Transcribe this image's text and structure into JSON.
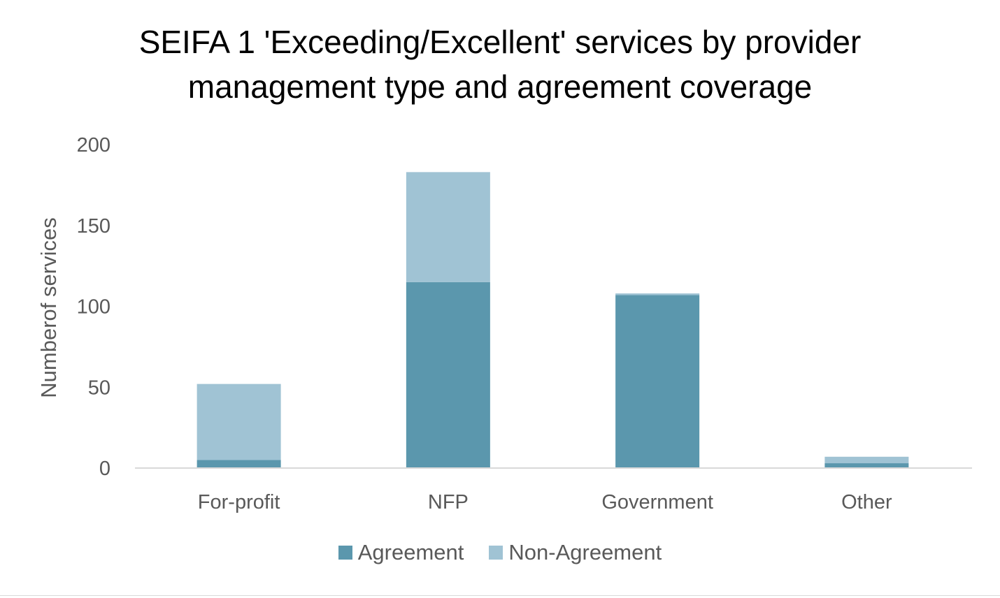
{
  "chart_data": {
    "type": "bar",
    "stacked": true,
    "title": "SEIFA 1 'Exceeding/Excellent' services by provider management type and agreement coverage",
    "title_lines": [
      "SEIFA 1 'Exceeding/Excellent' services by provider",
      "management type and agreement coverage"
    ],
    "xlabel": "",
    "ylabel": "Numberof services",
    "categories": [
      "For-profit",
      "NFP",
      "Government",
      "Other"
    ],
    "series": [
      {
        "name": "Agreement",
        "values": [
          5,
          115,
          107,
          3
        ],
        "color": "#5b97ad"
      },
      {
        "name": "Non-Agreement",
        "values": [
          47,
          68,
          1,
          4
        ],
        "color": "#a0c3d4"
      }
    ],
    "ylim": [
      0,
      200
    ],
    "yticks": [
      "0",
      "50",
      "100",
      "150",
      "200"
    ],
    "grid": false,
    "legend_position": "bottom",
    "axis_color": "#d9d9d9",
    "text_color": "#595959"
  }
}
